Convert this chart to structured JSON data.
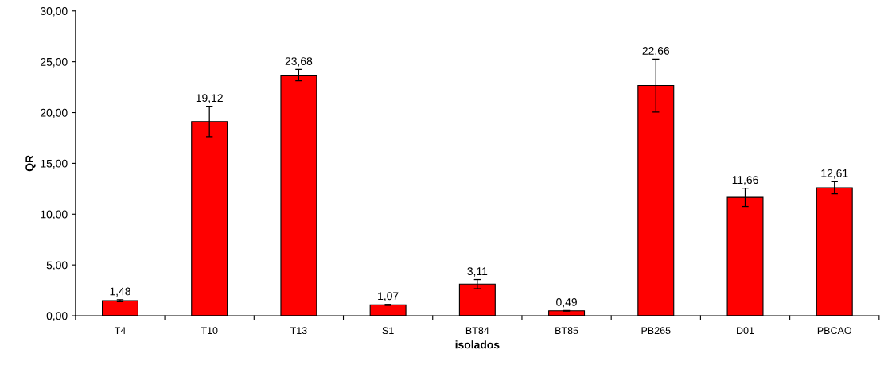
{
  "chart_data": {
    "type": "bar",
    "xlabel": "isolados",
    "ylabel": "QR",
    "categories": [
      "T4",
      "T10",
      "T13",
      "S1",
      "BT84",
      "BT85",
      "PB265",
      "D01",
      "PBCAO"
    ],
    "values": [
      1.48,
      19.12,
      23.68,
      1.07,
      3.11,
      0.49,
      22.66,
      11.66,
      12.61
    ],
    "errors": [
      0.1,
      1.5,
      0.55,
      0.05,
      0.45,
      0.03,
      2.6,
      0.9,
      0.6
    ],
    "value_labels": [
      "1,48",
      "19,12",
      "23,68",
      "1,07",
      "3,11",
      "0,49",
      "22,66",
      "11,66",
      "12,61"
    ],
    "color": "#ff0000",
    "ylim": [
      0,
      30
    ],
    "yticks": [
      {
        "value": 0,
        "label": "0,00"
      },
      {
        "value": 5,
        "label": "5,00"
      },
      {
        "value": 10,
        "label": "10,00"
      },
      {
        "value": 15,
        "label": "15,00"
      },
      {
        "value": 20,
        "label": "20,00"
      },
      {
        "value": 25,
        "label": "25,00"
      },
      {
        "value": 30,
        "label": "30,00"
      }
    ],
    "grid": false,
    "legend": false
  }
}
